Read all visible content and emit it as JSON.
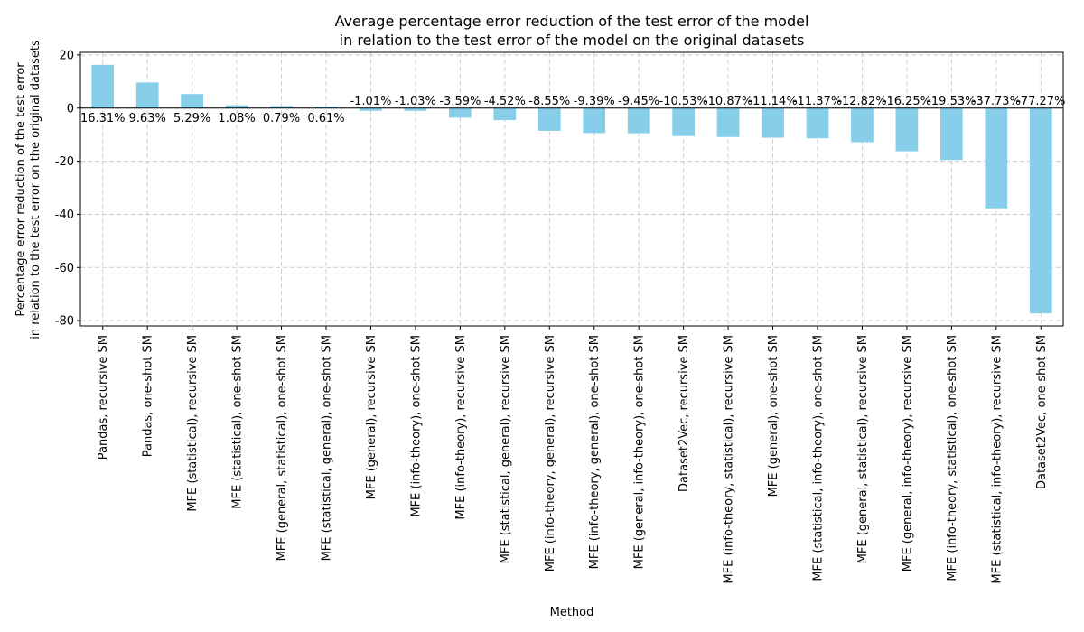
{
  "chart_data": {
    "type": "bar",
    "title": [
      "Average percentage error reduction of the test error of the model",
      "in relation to the test error of the model on the original datasets"
    ],
    "xlabel": "Method",
    "ylabel": [
      "Percentage error reduction of the test error",
      "in relation to the test error on the original datasets"
    ],
    "ylim": [
      -82,
      21
    ],
    "yticks": [
      -80,
      -60,
      -40,
      -20,
      0,
      20
    ],
    "grid": true,
    "bar_color": "#87ceeb",
    "categories": [
      "Pandas, recursive SM",
      "Pandas, one-shot SM",
      "MFE (statistical), recursive SM",
      "MFE (statistical), one-shot SM",
      "MFE (general, statistical), one-shot SM",
      "MFE (statistical, general), one-shot SM",
      "MFE (general), recursive SM",
      "MFE (info-theory), one-shot SM",
      "MFE (info-theory), recursive SM",
      "MFE (statistical, general), recursive SM",
      "MFE (info-theory, general), recursive SM",
      "MFE (info-theory, general), one-shot SM",
      "MFE (general, info-theory), one-shot SM",
      "Dataset2Vec, recursive SM",
      "MFE (info-theory, statistical), recursive SM",
      "MFE (general), one-shot SM",
      "MFE (statistical, info-theory), one-shot SM",
      "MFE (general, statistical), recursive SM",
      "MFE (general, info-theory), recursive SM",
      "MFE (info-theory, statistical), one-shot SM",
      "MFE (statistical, info-theory), recursive SM",
      "Dataset2Vec, one-shot SM"
    ],
    "values": [
      16.31,
      9.63,
      5.29,
      1.08,
      0.79,
      0.61,
      -1.01,
      -1.03,
      -3.59,
      -4.52,
      -8.55,
      -9.39,
      -9.45,
      -10.53,
      -10.87,
      -11.14,
      -11.37,
      -12.82,
      -16.25,
      -19.53,
      -37.73,
      -77.27
    ],
    "data_labels": [
      "16.31%",
      "9.63%",
      "5.29%",
      "1.08%",
      "0.79%",
      "0.61%",
      "-1.01%",
      "-1.03%",
      "-3.59%",
      "-4.52%",
      "-8.55%",
      "-9.39%",
      "-9.45%",
      "-10.53%",
      "-10.87%",
      "-11.14%",
      "-11.37%",
      "-12.82%",
      "-16.25%",
      "-19.53%",
      "-37.73%",
      "-77.27%"
    ]
  }
}
